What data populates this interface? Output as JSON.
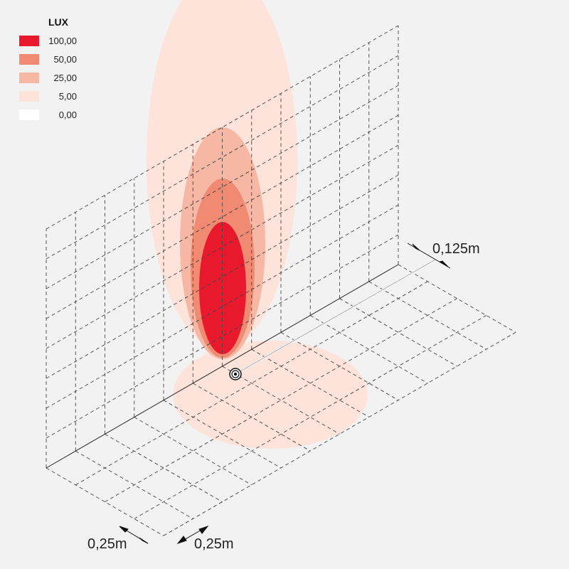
{
  "legend": {
    "title": "LUX",
    "items": [
      {
        "label": "100,00",
        "color": "#e8192c"
      },
      {
        "label": "50,00",
        "color": "#f08a72"
      },
      {
        "label": "25,00",
        "color": "#f6b8a5"
      },
      {
        "label": "5,00",
        "color": "#fde3da"
      },
      {
        "label": "0,00",
        "color": "#ffffff"
      }
    ]
  },
  "dimensions": {
    "offset": "0,125m",
    "grid_depth": "0,25m",
    "grid_width": "0,25m"
  }
}
